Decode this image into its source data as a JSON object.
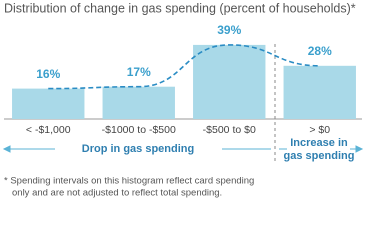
{
  "chart_data": {
    "type": "bar",
    "title": "Distribution of change in gas spending (percent of households)*",
    "categories": [
      "< -$1,000",
      "-$1000 to -$500",
      "-$500 to $0",
      "> $0"
    ],
    "values": [
      16,
      17,
      39,
      28
    ],
    "value_labels": [
      "16%",
      "17%",
      "39%",
      "28%"
    ],
    "color": "#a9d9e8",
    "ylim": [
      0,
      45
    ],
    "annotations": {
      "drop": "Drop in gas spending",
      "increase": [
        "Increase in",
        "gas spending"
      ]
    },
    "footnote": [
      "*  Spending intervals on this histogram reflect card spending",
      "only and are not adjusted to reflect total spending."
    ]
  }
}
